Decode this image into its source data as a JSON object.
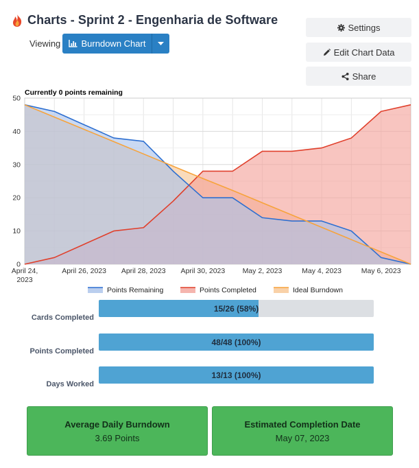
{
  "header": {
    "title": "Charts - Sprint 2 - Engenharia de Software",
    "viewing_label": "Viewing",
    "chart_selector": "Burndown Chart",
    "icons": {
      "logo": "flame-logo",
      "selector": "bar-chart-icon",
      "dropdown": "caret-down-icon"
    }
  },
  "actions": {
    "settings": "Settings",
    "edit_chart_data": "Edit Chart Data",
    "share": "Share"
  },
  "chart_data": {
    "type": "area",
    "title": "Currently 0 points remaining",
    "x": [
      "April 24, 2023",
      "April 25, 2023",
      "April 26, 2023",
      "April 27, 2023",
      "April 28, 2023",
      "April 29, 2023",
      "April 30, 2023",
      "May 1, 2023",
      "May 2, 2023",
      "May 3, 2023",
      "May 4, 2023",
      "May 5, 2023",
      "May 6, 2023",
      "May 7, 2023"
    ],
    "x_tick_labels": [
      "April 24, 2023",
      "April 26, 2023",
      "April 28, 2023",
      "April 30, 2023",
      "May 2, 2023",
      "May 4, 2023",
      "May 6, 2023"
    ],
    "ylim": [
      0,
      50
    ],
    "y_ticks": [
      0,
      10,
      20,
      30,
      40,
      50
    ],
    "grid": true,
    "legend_position": "bottom",
    "series": [
      {
        "name": "Points Remaining",
        "color": "#2d6fd1",
        "fill": "#a9c2ea",
        "values": [
          48,
          46,
          42,
          38,
          37,
          28,
          20,
          20,
          14,
          13,
          13,
          10,
          2,
          0
        ]
      },
      {
        "name": "Points Completed",
        "color": "#e0402c",
        "fill": "#f3a29a",
        "values": [
          0,
          2,
          6,
          10,
          11,
          19,
          28,
          28,
          34,
          34,
          35,
          38,
          46,
          48
        ]
      },
      {
        "name": "Ideal Burndown",
        "color": "#f7a33b",
        "fill": "#f7c592",
        "values": [
          48,
          44.3,
          40.6,
          36.9,
          33.2,
          29.5,
          25.8,
          22.2,
          18.5,
          14.8,
          11.1,
          7.4,
          3.7,
          0
        ]
      }
    ]
  },
  "progress": [
    {
      "label": "Cards Completed",
      "text": "15/26 (58%)",
      "fraction": 0.58
    },
    {
      "label": "Points Completed",
      "text": "48/48 (100%)",
      "fraction": 1.0
    },
    {
      "label": "Days Worked",
      "text": "13/13 (100%)",
      "fraction": 1.0
    }
  ],
  "stats": [
    {
      "title": "Average Daily Burndown",
      "value": "3.69 Points"
    },
    {
      "title": "Estimated Completion Date",
      "value": "May 07, 2023"
    }
  ]
}
